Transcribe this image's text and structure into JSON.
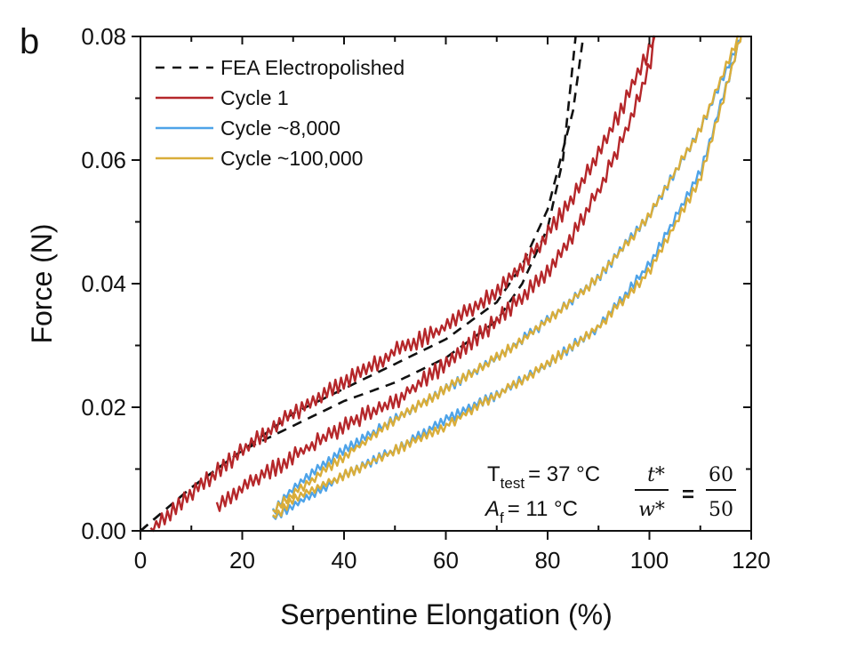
{
  "chart_data": {
    "type": "line",
    "panel_label": "b",
    "title": "",
    "xlabel": "Serpentine Elongation (%)",
    "ylabel": "Force (N)",
    "xlim": [
      0,
      120
    ],
    "ylim": [
      0,
      0.08
    ],
    "xticks": [
      0,
      20,
      40,
      60,
      80,
      100,
      120
    ],
    "xtick_labels": [
      "0",
      "20",
      "40",
      "60",
      "80",
      "100",
      "120"
    ],
    "yticks": [
      0,
      0.02,
      0.04,
      0.06,
      0.08
    ],
    "ytick_labels": [
      "0.00",
      "0.02",
      "0.04",
      "0.06",
      "0.08"
    ],
    "grid": false,
    "legend_position": "top-left",
    "legend": [
      {
        "label": "FEA Electropolished",
        "color": "#111111",
        "style": "dashed"
      },
      {
        "label": "Cycle 1",
        "color": "#b5272a",
        "style": "solid"
      },
      {
        "label": "Cycle ~8,000",
        "color": "#4ea3e8",
        "style": "solid"
      },
      {
        "label": "Cycle ~100,000",
        "color": "#d9ad3a",
        "style": "solid"
      }
    ],
    "series": [
      {
        "name": "FEA Electropolished (loading)",
        "color": "#111111",
        "style": "dashed",
        "noise": 0,
        "x": [
          0,
          10,
          20,
          30,
          40,
          50,
          60,
          70,
          75,
          80,
          85,
          87
        ],
        "y": [
          0,
          0.007,
          0.013,
          0.019,
          0.023,
          0.027,
          0.031,
          0.037,
          0.043,
          0.052,
          0.068,
          0.08
        ]
      },
      {
        "name": "FEA Electropolished (unloading)",
        "color": "#111111",
        "style": "dashed",
        "noise": 0,
        "x": [
          0,
          10,
          20,
          30,
          40,
          50,
          60,
          70,
          75,
          80,
          83,
          85.5
        ],
        "y": [
          0,
          0.007,
          0.013,
          0.017,
          0.021,
          0.024,
          0.028,
          0.034,
          0.04,
          0.049,
          0.06,
          0.08
        ]
      },
      {
        "name": "Cycle 1 (loading)",
        "color": "#b5272a",
        "style": "solid",
        "noise": 0.0012,
        "x": [
          2,
          10,
          20,
          30,
          40,
          50,
          60,
          70,
          75,
          80,
          85,
          90,
          95,
          100,
          101
        ],
        "y": [
          0,
          0.006,
          0.013,
          0.019,
          0.024,
          0.029,
          0.033,
          0.039,
          0.043,
          0.048,
          0.054,
          0.061,
          0.069,
          0.078,
          0.08
        ]
      },
      {
        "name": "Cycle 1 (unloading)",
        "color": "#b5272a",
        "style": "solid",
        "noise": 0.0012,
        "x": [
          15,
          20,
          30,
          40,
          50,
          60,
          70,
          80,
          85,
          90,
          95,
          100,
          101
        ],
        "y": [
          0.004,
          0.007,
          0.012,
          0.017,
          0.021,
          0.027,
          0.034,
          0.042,
          0.048,
          0.055,
          0.064,
          0.075,
          0.08
        ]
      },
      {
        "name": "Cycle ~8,000 (loading)",
        "color": "#4ea3e8",
        "style": "solid",
        "noise": 0.0007,
        "x": [
          26,
          30,
          40,
          50,
          60,
          70,
          80,
          90,
          100,
          110,
          118
        ],
        "y": [
          0.003,
          0.007,
          0.013,
          0.018,
          0.023,
          0.028,
          0.034,
          0.041,
          0.051,
          0.065,
          0.08
        ]
      },
      {
        "name": "Cycle ~8,000 (unloading)",
        "color": "#4ea3e8",
        "style": "solid",
        "noise": 0.0007,
        "x": [
          26,
          30,
          40,
          50,
          60,
          70,
          80,
          90,
          100,
          110,
          118
        ],
        "y": [
          0.002,
          0.004,
          0.009,
          0.013,
          0.018,
          0.022,
          0.027,
          0.033,
          0.043,
          0.058,
          0.08
        ]
      },
      {
        "name": "Cycle ~100,000 (loading)",
        "color": "#d9ad3a",
        "style": "solid",
        "noise": 0.0007,
        "x": [
          26,
          30,
          40,
          50,
          60,
          70,
          80,
          90,
          100,
          110,
          117.5
        ],
        "y": [
          0.003,
          0.006,
          0.012,
          0.018,
          0.023,
          0.028,
          0.034,
          0.041,
          0.051,
          0.065,
          0.08
        ]
      },
      {
        "name": "Cycle ~100,000 (unloading)",
        "color": "#d9ad3a",
        "style": "solid",
        "noise": 0.0007,
        "x": [
          26,
          30,
          40,
          50,
          60,
          70,
          80,
          90,
          100,
          110,
          118
        ],
        "y": [
          0.002,
          0.005,
          0.009,
          0.013,
          0.017,
          0.022,
          0.027,
          0.033,
          0.042,
          0.057,
          0.08
        ]
      }
    ],
    "annotations": {
      "t_test_symbol": "T",
      "t_test_sub": "test",
      "t_test_value": "= 37 °C",
      "af_symbol": "A",
      "af_sub": "f",
      "af_value": "= 11 °C",
      "ratio_num_symbol": "t*",
      "ratio_den_symbol": "w*",
      "equals": "=",
      "ratio_num_value": "60",
      "ratio_den_value": "50"
    }
  }
}
